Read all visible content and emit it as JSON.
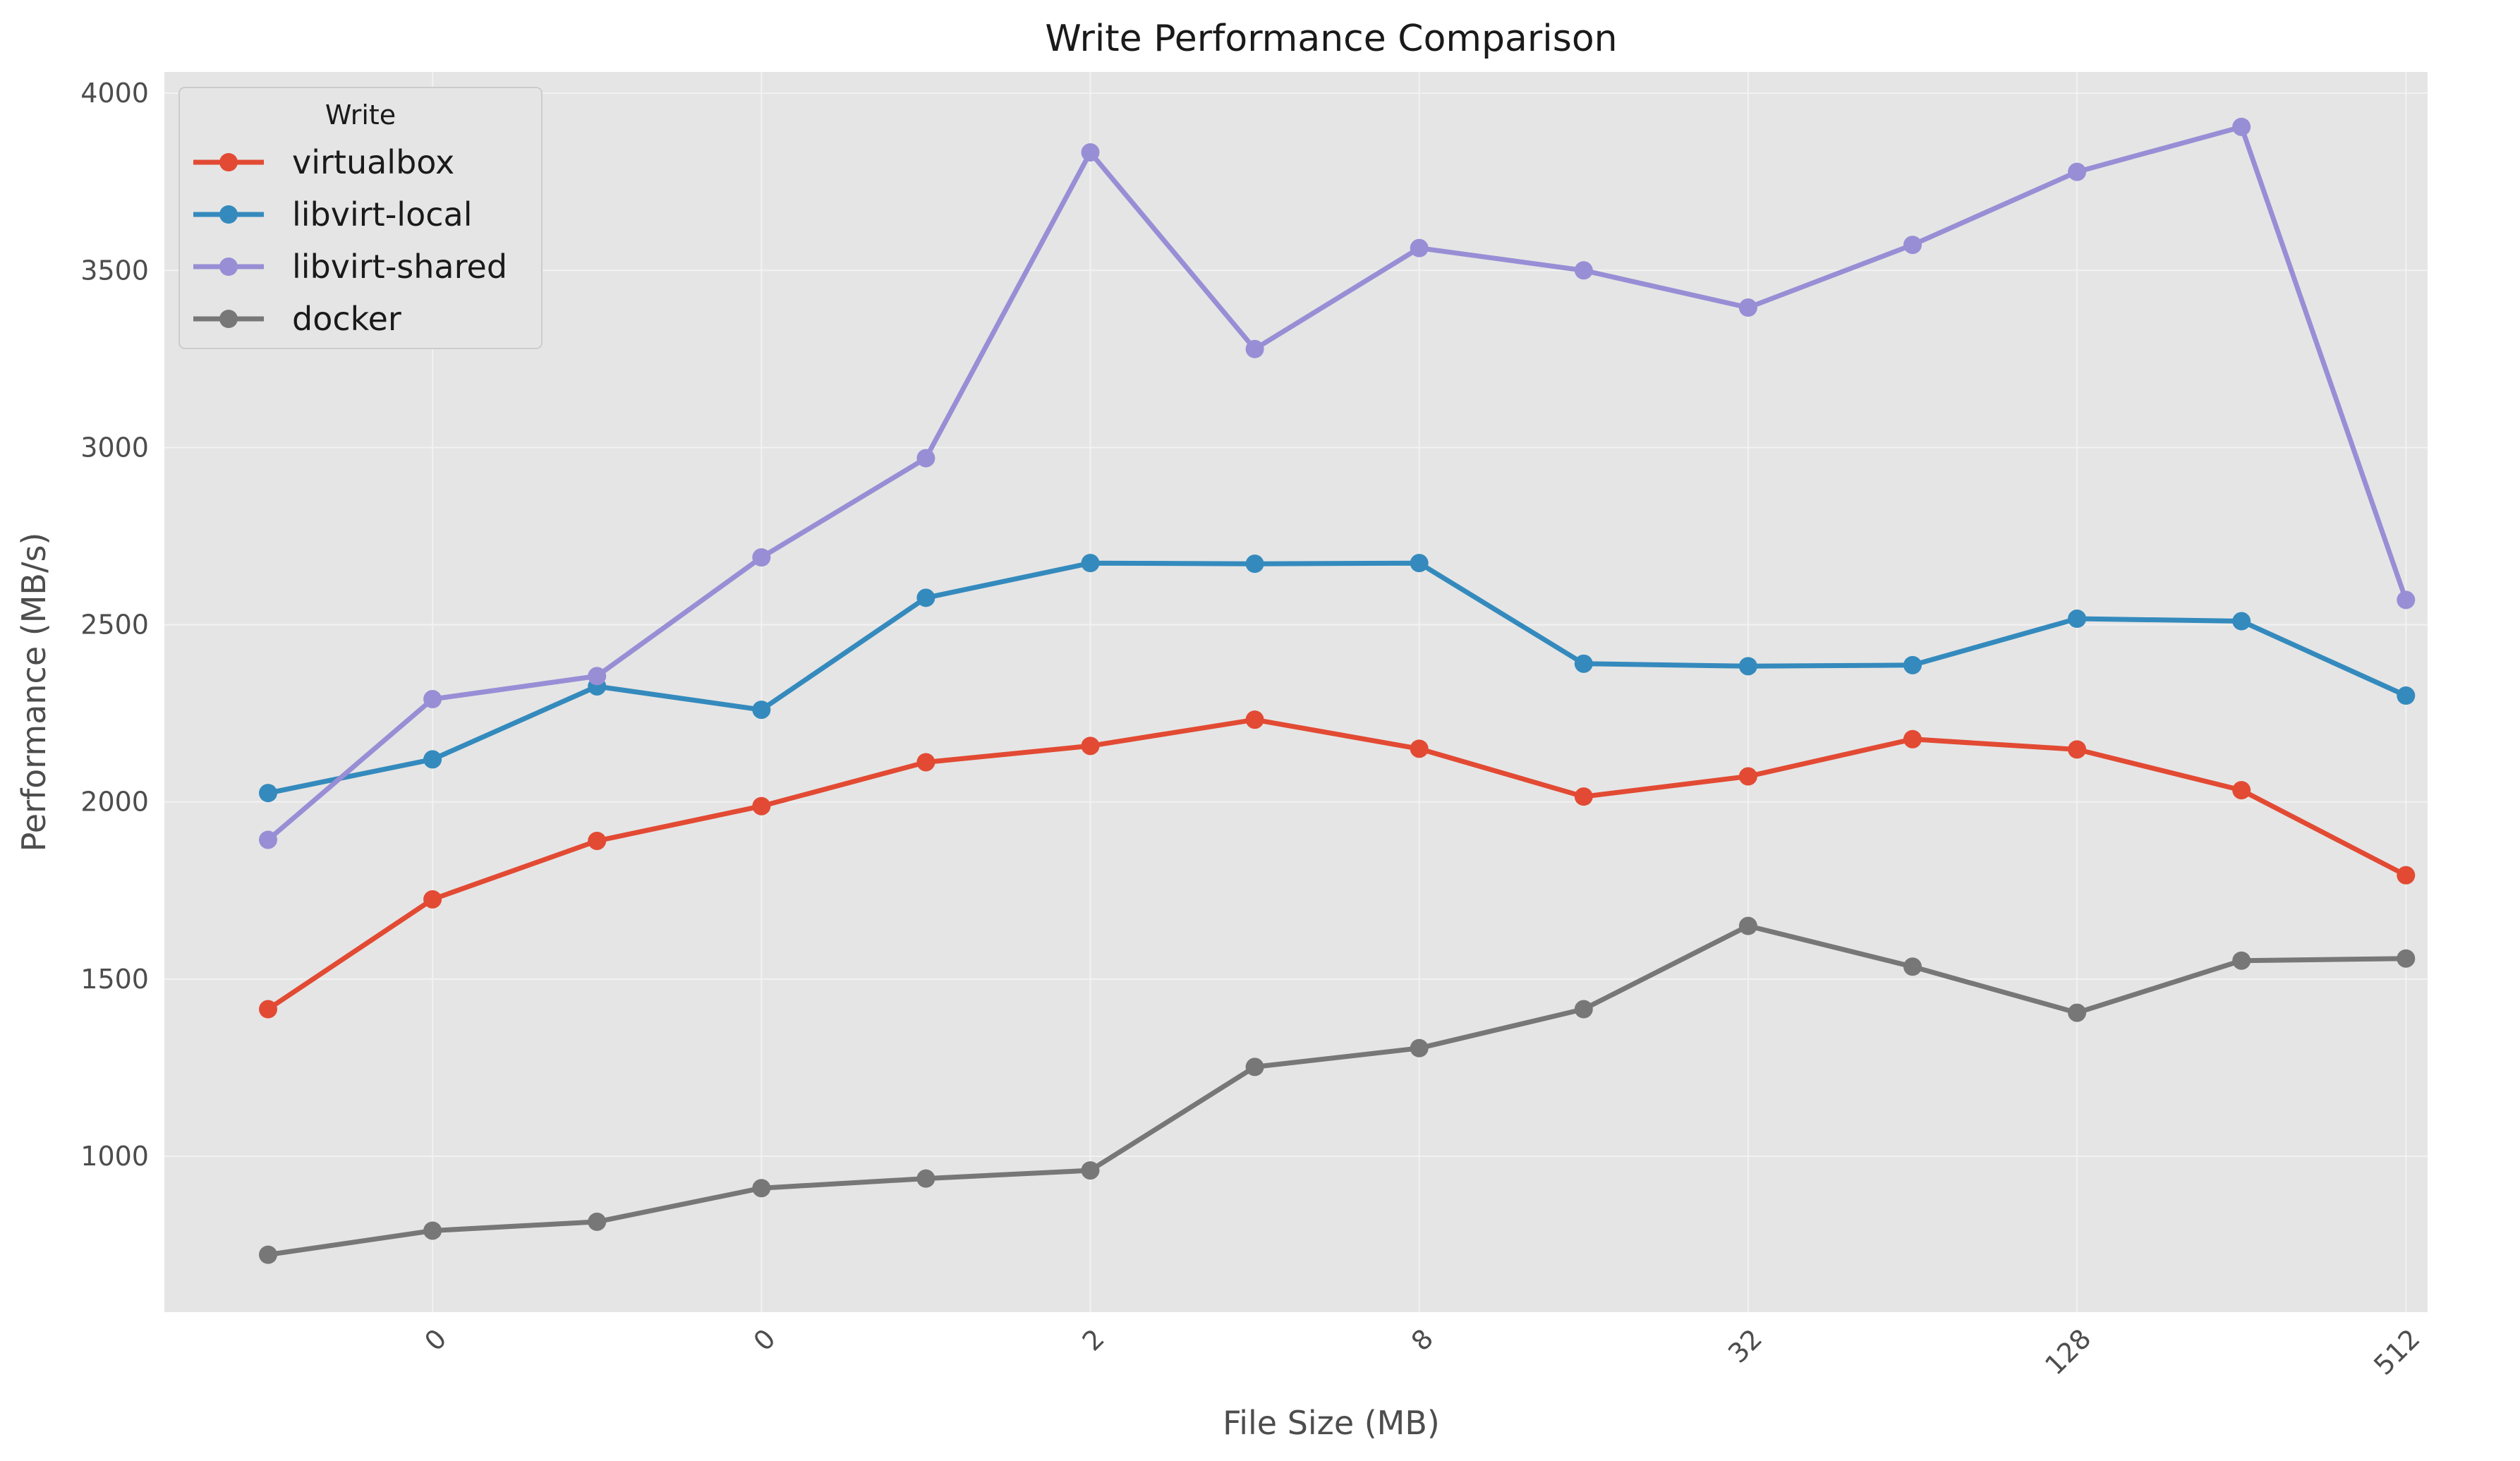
{
  "chart_data": {
    "type": "line",
    "title": "Write Performance Comparison",
    "xlabel": "File Size (MB)",
    "ylabel": "Performance (MB/s)",
    "x_tick_labels": [
      "",
      "0",
      "",
      "0",
      "",
      "2",
      "",
      "8",
      "",
      "32",
      "",
      "128",
      "",
      "512"
    ],
    "ylim": [
      560,
      4060
    ],
    "yticks": [
      1000,
      1500,
      2000,
      2500,
      3000,
      3500,
      4000
    ],
    "grid": true,
    "legend": {
      "title": "Write",
      "placement": "top-left"
    },
    "series": [
      {
        "name": "virtualbox",
        "color": "#E24A33",
        "values": [
          1415,
          1725,
          1890,
          1988,
          2112,
          2158,
          2232,
          2150,
          2015,
          2072,
          2177,
          2148,
          2033,
          1793
        ]
      },
      {
        "name": "libvirt-local",
        "color": "#348ABD",
        "values": [
          2025,
          2120,
          2326,
          2260,
          2576,
          2674,
          2672,
          2674,
          2390,
          2383,
          2386,
          2517,
          2510,
          2300
        ]
      },
      {
        "name": "libvirt-shared",
        "color": "#988ED5",
        "values": [
          1893,
          2290,
          2355,
          2690,
          2970,
          3833,
          3278,
          3563,
          3500,
          3395,
          3572,
          3778,
          3905,
          2570
        ]
      },
      {
        "name": "docker",
        "color": "#777777",
        "values": [
          722,
          790,
          815,
          910,
          937,
          960,
          1252,
          1305,
          1415,
          1650,
          1535,
          1405,
          1552,
          1558
        ]
      }
    ]
  }
}
